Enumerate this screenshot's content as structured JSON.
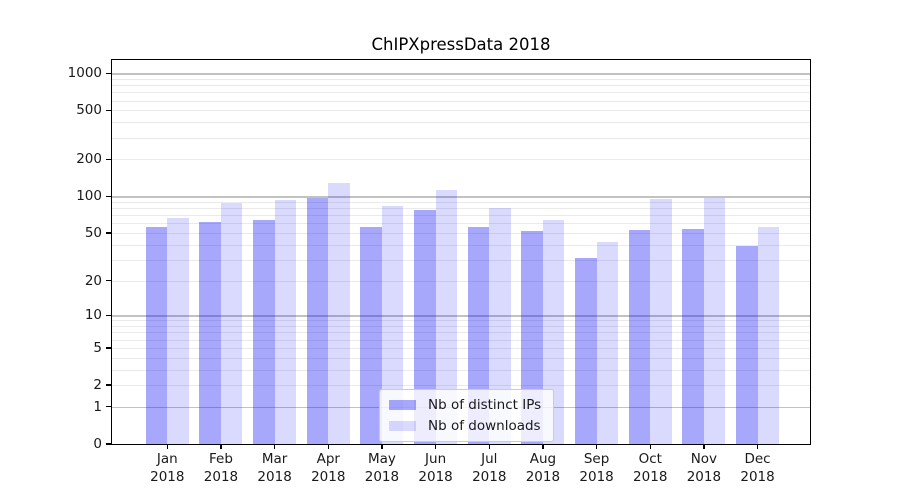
{
  "title": "ChIPXpressData 2018",
  "chart_data": {
    "type": "bar",
    "title": "ChIPXpressData 2018",
    "categories": [
      "Jan 2018",
      "Feb 2018",
      "Mar 2018",
      "Apr 2018",
      "May 2018",
      "Jun 2018",
      "Jul 2018",
      "Aug 2018",
      "Sep 2018",
      "Oct 2018",
      "Nov 2018",
      "Dec 2018"
    ],
    "series": [
      {
        "name": "Nb of distinct IPs",
        "values": [
          56,
          62,
          64,
          96,
          56,
          77,
          56,
          52,
          31,
          53,
          54,
          39
        ]
      },
      {
        "name": "Nb of downloads",
        "values": [
          67,
          88,
          93,
          128,
          84,
          113,
          81,
          64,
          42,
          95,
          96,
          56
        ]
      }
    ],
    "xlabel": "",
    "ylabel": "",
    "yscale": "log1p",
    "yticks": [
      0,
      1,
      2,
      5,
      10,
      20,
      50,
      100,
      200,
      500,
      1000
    ],
    "ylim": [
      0,
      1280
    ],
    "grid": true,
    "legend_position": "lower-center"
  },
  "legend": {
    "items": [
      {
        "label": "Nb of distinct IPs",
        "swatch": "ips"
      },
      {
        "label": "Nb of downloads",
        "swatch": "downloads"
      }
    ]
  },
  "colors": {
    "background": "#ffffff",
    "bar_base": "#0a0af5",
    "bar_ips_alpha": 0.36,
    "bar_downloads_alpha": 0.15,
    "grid_major": "#c2c2c2",
    "grid_minor": "#eaeaea",
    "axis": "#000000",
    "text": "#1a1a1a",
    "legend_border": "#cccccc",
    "legend_bg": "#ffffff",
    "legend_bg_alpha": 0.8
  }
}
